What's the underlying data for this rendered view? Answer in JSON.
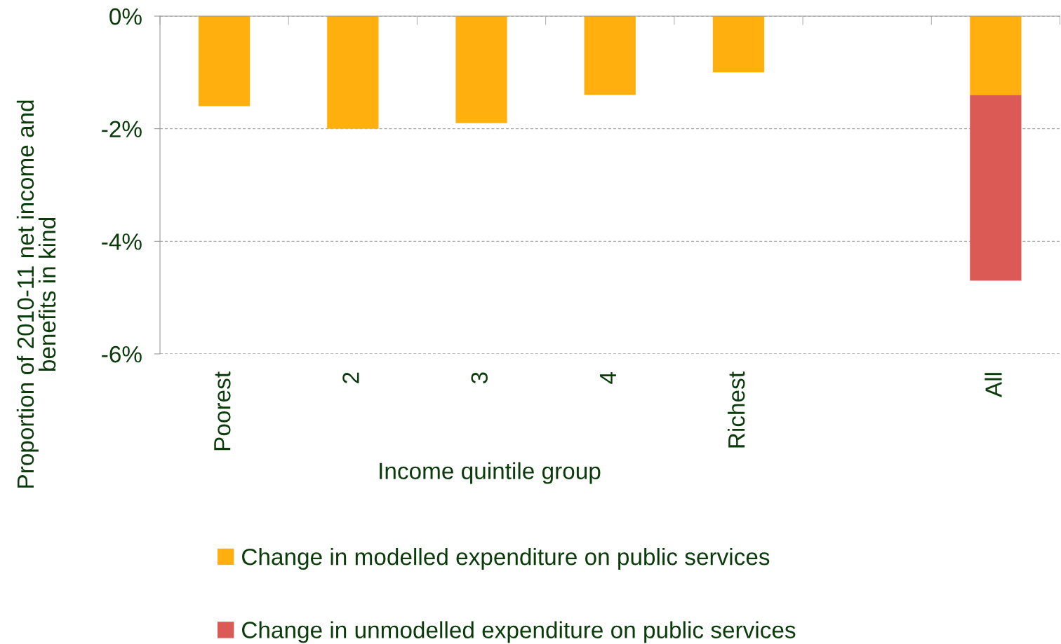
{
  "chart_data": {
    "type": "bar",
    "stacked": true,
    "categories": [
      "Poorest",
      "2",
      "3",
      "4",
      "Richest",
      null,
      "All"
    ],
    "series": [
      {
        "name": "Change in modelled expenditure on public services",
        "color": "#ffb00f",
        "values": [
          -1.6,
          -2.0,
          -1.9,
          -1.4,
          -1.0,
          null,
          -1.4
        ]
      },
      {
        "name": "Change in unmodelled expenditure on public services",
        "color": "#dc5a55",
        "values": [
          null,
          null,
          null,
          null,
          null,
          null,
          -3.3
        ]
      }
    ],
    "xlabel": "Income quintile group",
    "ylabel": "Proportion of 2010-11 net income and\nbenefits in kind",
    "ylim": [
      -6,
      0
    ],
    "yticks": [
      {
        "value": -6,
        "label": "-6%"
      },
      {
        "value": -4,
        "label": "-4%"
      },
      {
        "value": -2,
        "label": "-2%"
      },
      {
        "value": 0,
        "label": "0%"
      }
    ],
    "grid": "y",
    "legend": "bottom"
  }
}
